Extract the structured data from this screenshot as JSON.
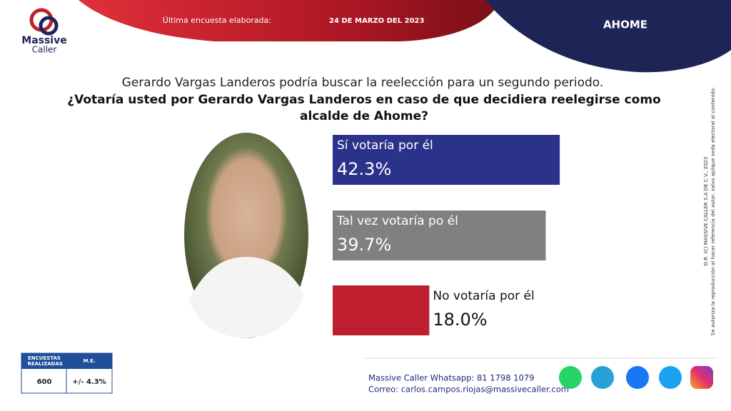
{
  "header": {
    "survey_label": "Última encuesta elaborada:",
    "survey_date": "24 DE MARZO DEL 2023",
    "region": "AHOME",
    "logo_line1": "Massive",
    "logo_line2": "Caller"
  },
  "question": {
    "context": "Gerardo Vargas Landeros podría buscar la reelección para un segundo periodo.",
    "lines": [
      "¿Votaría usted por Gerardo Vargas Landeros en caso de que decidiera reelegirse como",
      "alcalde de Ahome?"
    ]
  },
  "chart_data": {
    "type": "hbar",
    "categories": [
      "Sí votaría por él",
      "Tal vez votaría po él",
      "No votaría por él"
    ],
    "values": [
      42.3,
      39.7,
      18.0
    ],
    "value_labels": [
      "42.3%",
      "39.7%",
      "18.0%"
    ],
    "colors": [
      "#2b3289",
      "#808080",
      "#bf1e2e"
    ]
  },
  "sample": {
    "headers": [
      "ENCUESTAS REALIZADAS",
      "M.E."
    ],
    "cells": [
      "600",
      "+/- 4.3%"
    ]
  },
  "footer": {
    "whatsapp": "Massive Caller Whatsapp: 81 1798 1079",
    "email": "Correo: carlos.campos.riojas@massivecaller.com"
  },
  "legal": [
    "D.R. (C) MASSIVE CALLER S.A DE C.V., 2023",
    "Se autoriza la reproducción al hacer referencia del autor, salvo aplique veda electoral al contenido."
  ]
}
